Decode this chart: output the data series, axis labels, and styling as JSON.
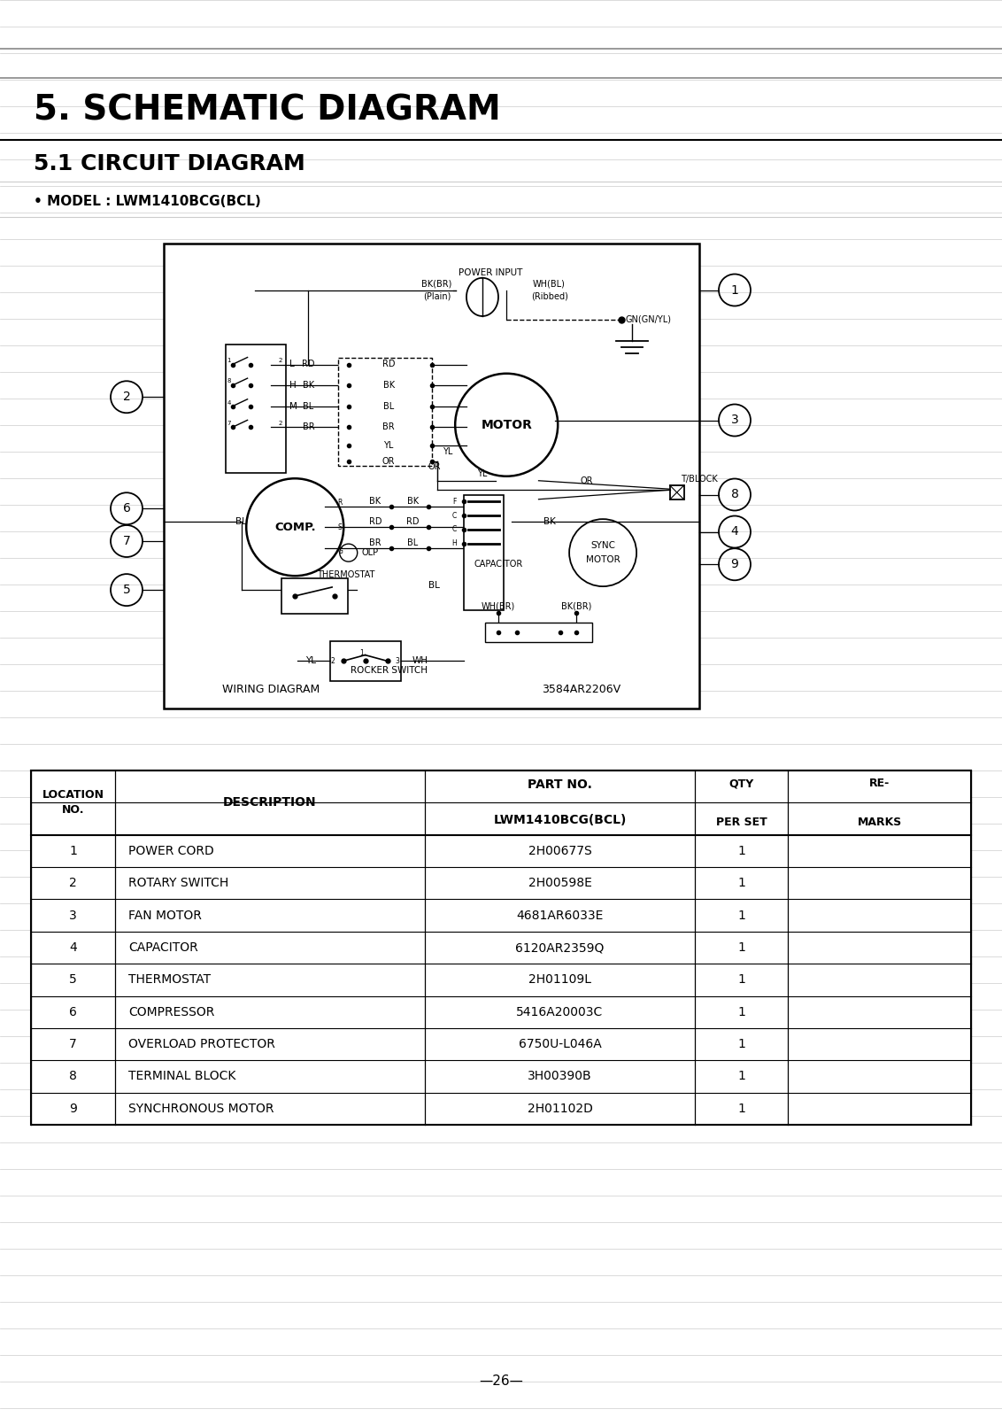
{
  "title1": "5. SCHEMATIC DIAGRAM",
  "title2": "5.1 CIRCUIT DIAGRAM",
  "model_line": "• MODEL : LWM1410BCG(BCL)",
  "diagram_title": "WIRING DIAGRAM",
  "diagram_code": "3584AR2206V",
  "page_number": "—26—",
  "bg_color": "#ffffff",
  "part_no_subheader": "LWM1410BCG(BCL)",
  "table_rows": [
    [
      "1",
      "POWER CORD",
      "2H00677S",
      "1",
      ""
    ],
    [
      "2",
      "ROTARY SWITCH",
      "2H00598E",
      "1",
      ""
    ],
    [
      "3",
      "FAN MOTOR",
      "4681AR6033E",
      "1",
      ""
    ],
    [
      "4",
      "CAPACITOR",
      "6120AR2359Q",
      "1",
      ""
    ],
    [
      "5",
      "THERMOSTAT",
      "2H01109L",
      "1",
      ""
    ],
    [
      "6",
      "COMPRESSOR",
      "5416A20003C",
      "1",
      ""
    ],
    [
      "7",
      "OVERLOAD PROTECTOR",
      "6750U-L046A",
      "1",
      ""
    ],
    [
      "8",
      "TERMINAL BLOCK",
      "3H00390B",
      "1",
      ""
    ],
    [
      "9",
      "SYNCHRONOUS MOTOR",
      "2H01102D",
      "1",
      ""
    ]
  ]
}
